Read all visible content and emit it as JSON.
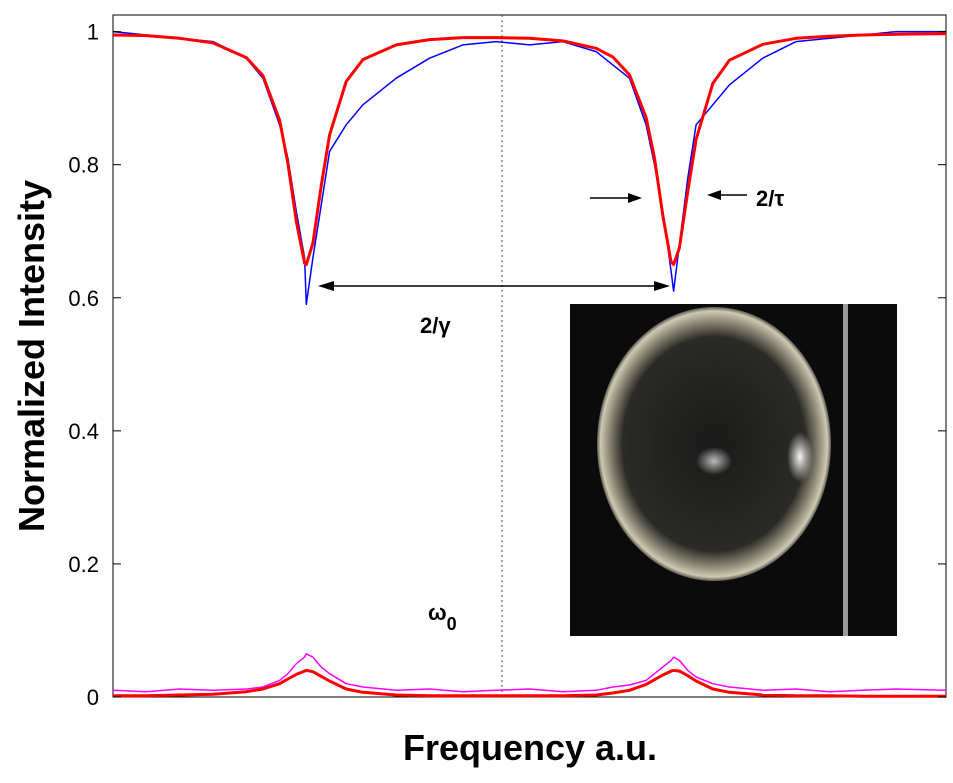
{
  "chart_data": {
    "type": "line",
    "x_label": "Frequency a.u.",
    "y_label": "Normalized Intensity",
    "xlim": [
      0,
      100
    ],
    "ylim": [
      0,
      1.025
    ],
    "yticks": [
      0,
      0.2,
      0.4,
      0.6,
      0.8,
      1
    ],
    "grid": false,
    "x": [
      0,
      4,
      8,
      12,
      16,
      18,
      20,
      21,
      22,
      23,
      23.2,
      24,
      25,
      26,
      28,
      30,
      34,
      38,
      42,
      46,
      50,
      54,
      58,
      60,
      62,
      64,
      65,
      66,
      67,
      67.3,
      68,
      69,
      70,
      72,
      74,
      78,
      82,
      86,
      90,
      94,
      100
    ],
    "series": [
      {
        "color": "#0000ff",
        "values": [
          1.0,
          0.995,
          0.99,
          0.985,
          0.96,
          0.93,
          0.86,
          0.81,
          0.73,
          0.66,
          0.59,
          0.66,
          0.74,
          0.82,
          0.86,
          0.89,
          0.93,
          0.96,
          0.98,
          0.985,
          0.98,
          0.985,
          0.97,
          0.95,
          0.93,
          0.86,
          0.8,
          0.73,
          0.64,
          0.61,
          0.68,
          0.78,
          0.86,
          0.89,
          0.92,
          0.96,
          0.985,
          0.99,
          0.995,
          1.0,
          1.0
        ]
      },
      {
        "color": "#ff0000",
        "values": [
          0.995,
          0.994,
          0.99,
          0.983,
          0.961,
          0.934,
          0.867,
          0.802,
          0.715,
          0.652,
          0.65,
          0.682,
          0.769,
          0.845,
          0.925,
          0.958,
          0.98,
          0.988,
          0.991,
          0.991,
          0.99,
          0.986,
          0.975,
          0.962,
          0.935,
          0.871,
          0.81,
          0.724,
          0.654,
          0.65,
          0.675,
          0.76,
          0.838,
          0.922,
          0.957,
          0.981,
          0.99,
          0.993,
          0.995,
          0.996,
          0.997
        ]
      },
      {
        "color": "#ff00ff",
        "values": [
          0.01,
          0.008,
          0.012,
          0.01,
          0.012,
          0.015,
          0.025,
          0.035,
          0.05,
          0.06,
          0.065,
          0.06,
          0.045,
          0.035,
          0.02,
          0.015,
          0.01,
          0.012,
          0.008,
          0.01,
          0.012,
          0.008,
          0.01,
          0.015,
          0.018,
          0.025,
          0.035,
          0.045,
          0.055,
          0.06,
          0.055,
          0.04,
          0.03,
          0.02,
          0.015,
          0.01,
          0.012,
          0.008,
          0.01,
          0.012,
          0.01
        ]
      },
      {
        "color": "#ff0000",
        "values": [
          0.002,
          0.002,
          0.003,
          0.004,
          0.008,
          0.012,
          0.02,
          0.027,
          0.034,
          0.039,
          0.04,
          0.038,
          0.031,
          0.024,
          0.012,
          0.007,
          0.003,
          0.002,
          0.002,
          0.002,
          0.002,
          0.002,
          0.003,
          0.006,
          0.01,
          0.019,
          0.026,
          0.033,
          0.039,
          0.04,
          0.039,
          0.032,
          0.024,
          0.012,
          0.007,
          0.003,
          0.002,
          0.002,
          0.001,
          0.001,
          0.001
        ]
      }
    ],
    "annotations": [
      {
        "text": "2/τ"
      },
      {
        "text": "2/γ"
      },
      {
        "text": "ω",
        "subscript": "0"
      }
    ]
  }
}
